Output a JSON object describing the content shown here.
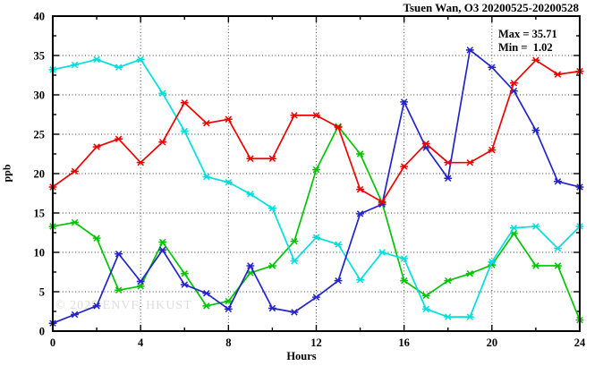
{
  "chart_data": {
    "type": "line",
    "title": "Tsuen Wan, O3 20200525-20200528",
    "xlabel": "Hours",
    "ylabel": "ppb",
    "xlim": [
      0,
      24
    ],
    "ylim": [
      0,
      40
    ],
    "x_major_ticks": [
      0,
      4,
      8,
      12,
      16,
      20,
      24
    ],
    "x_minor_step": 2,
    "y_major_ticks": [
      0,
      5,
      10,
      15,
      20,
      25,
      30,
      35,
      40
    ],
    "y_minor_step": 2.5,
    "grid": "dotted-at-major-ticks",
    "legend_position": "none",
    "annotations": {
      "max_label": "Max = 35.71",
      "min_label": "Min =  1.02"
    },
    "watermark": "© 2025 ENVF, HKUST",
    "x": [
      0,
      1,
      2,
      3,
      4,
      5,
      6,
      7,
      8,
      9,
      10,
      11,
      12,
      13,
      14,
      15,
      16,
      17,
      18,
      19,
      20,
      21,
      22,
      23,
      24
    ],
    "series": [
      {
        "name": "series-green",
        "color": "#00c400",
        "values": [
          13.3,
          13.8,
          11.8,
          5.2,
          5.7,
          11.3,
          7.3,
          3.2,
          3.8,
          7.4,
          8.3,
          11.4,
          20.5,
          26.0,
          22.5,
          16.3,
          6.4,
          4.5,
          6.4,
          7.3,
          8.4,
          12.4,
          8.3,
          8.3,
          1.4
        ]
      },
      {
        "name": "series-cyan",
        "color": "#00dede",
        "values": [
          33.2,
          33.8,
          34.5,
          33.5,
          34.5,
          30.2,
          25.4,
          19.6,
          18.9,
          17.4,
          15.6,
          8.9,
          11.9,
          11.0,
          6.5,
          10.0,
          9.2,
          2.8,
          1.8,
          1.8,
          8.8,
          13.1,
          13.3,
          10.5,
          13.3
        ]
      },
      {
        "name": "series-blue",
        "color": "#2323cd",
        "values": [
          1.0,
          2.1,
          3.2,
          9.8,
          6.3,
          10.3,
          5.9,
          4.8,
          2.8,
          8.3,
          2.9,
          2.4,
          4.3,
          6.4,
          14.9,
          16.1,
          29.1,
          23.3,
          19.4,
          35.7,
          33.5,
          30.5,
          25.5,
          19.0,
          18.3
        ]
      },
      {
        "name": "series-red",
        "color": "#ee0000",
        "values": [
          18.3,
          20.3,
          23.4,
          24.4,
          21.4,
          24.0,
          29.0,
          26.4,
          26.9,
          21.9,
          21.9,
          27.4,
          27.4,
          25.9,
          18.0,
          16.4,
          20.9,
          23.8,
          21.4,
          21.4,
          23.0,
          31.5,
          34.4,
          32.6,
          33.0
        ]
      }
    ]
  }
}
